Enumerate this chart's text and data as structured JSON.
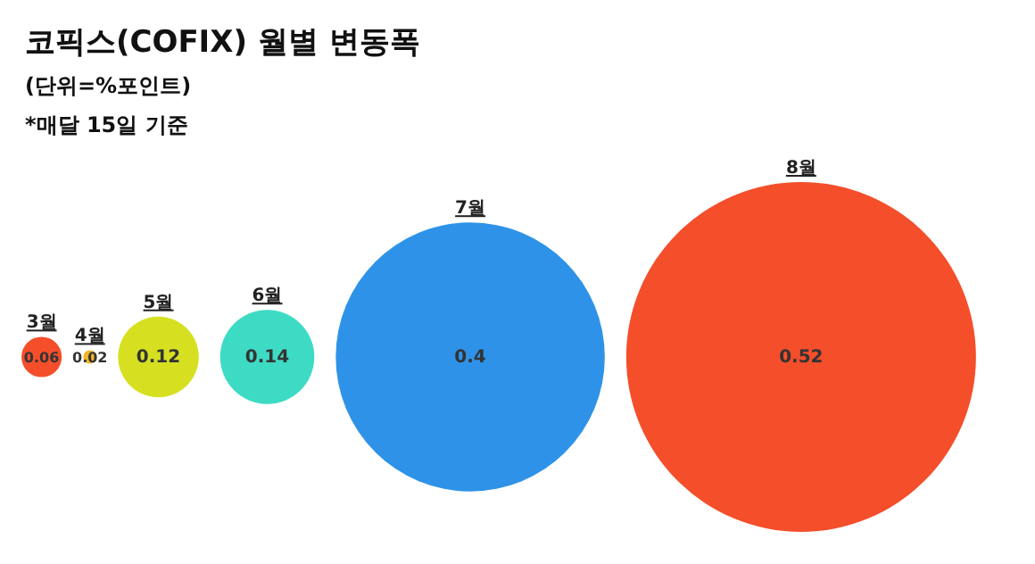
{
  "chart_data": {
    "type": "other",
    "title": "코픽스(COFIX) 월별 변동폭",
    "subtitle": "(단위=%포인트)",
    "annotations": [
      "*매달 15일 기준"
    ],
    "categories": [
      "3월",
      "4월",
      "5월",
      "6월",
      "7월",
      "8월"
    ],
    "values": [
      0.06,
      0.02,
      0.12,
      0.14,
      0.4,
      0.52
    ],
    "colors": [
      "#f44e2a",
      "#f0b429",
      "#d6e021",
      "#3ddbc4",
      "#2e93e8",
      "#f44e2a"
    ],
    "data_labels": true
  }
}
